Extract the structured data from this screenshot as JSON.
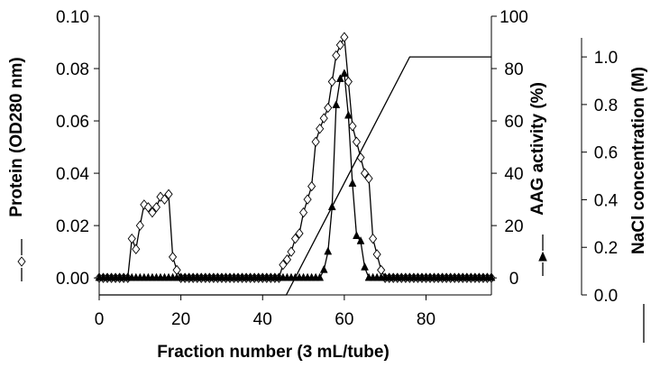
{
  "chart_data": {
    "type": "line",
    "xlabel": "Fraction number (3 mL/tube)",
    "xlim": [
      0,
      96
    ],
    "x_ticks": [
      "0",
      "20",
      "40",
      "60",
      "80"
    ],
    "axes": {
      "protein": {
        "label": "Protein (OD280 nm)",
        "lim": [
          -0.0065,
          0.1
        ],
        "ticks": [
          "0.00",
          "0.02",
          "0.04",
          "0.06",
          "0.08",
          "0.10"
        ],
        "tick_values": [
          0,
          0.02,
          0.04,
          0.06,
          0.08,
          0.1
        ]
      },
      "aag": {
        "label": "AAG activity (%)",
        "lim": [
          -6.5,
          100
        ],
        "ticks": [
          "0",
          "20",
          "40",
          "60",
          "80",
          "100"
        ],
        "tick_values": [
          0,
          20,
          40,
          60,
          80,
          100
        ]
      },
      "nacl": {
        "label": "NaCl concentration (M)",
        "lim": [
          0,
          1.08
        ],
        "ticks": [
          "0.0",
          "0.2",
          "0.4",
          "0.6",
          "0.8",
          "1.0"
        ],
        "tick_values": [
          0,
          0.2,
          0.4,
          0.6,
          0.8,
          1.0
        ]
      }
    },
    "series": [
      {
        "key": "protein",
        "axis": "protein",
        "marker": "diamond-open",
        "x": [
          0,
          1,
          2,
          3,
          4,
          5,
          6,
          7,
          8,
          9,
          10,
          11,
          12,
          13,
          14,
          15,
          16,
          17,
          18,
          19,
          20,
          21,
          22,
          23,
          24,
          25,
          26,
          27,
          28,
          29,
          30,
          31,
          32,
          33,
          34,
          35,
          36,
          37,
          38,
          39,
          40,
          41,
          42,
          43,
          44,
          45,
          46,
          47,
          48,
          49,
          50,
          51,
          52,
          53,
          54,
          55,
          56,
          57,
          58,
          59,
          60,
          61,
          62,
          63,
          64,
          65,
          66,
          67,
          68,
          69,
          70,
          71,
          72,
          73,
          74,
          75,
          76,
          77,
          78,
          79,
          80,
          81,
          82,
          83,
          84,
          85,
          86,
          87,
          88,
          89,
          90,
          91,
          92,
          93,
          94,
          95,
          96
        ],
        "y": [
          0,
          0,
          0,
          0,
          0,
          0,
          0,
          0,
          0.015,
          0.011,
          0.02,
          0.028,
          0.027,
          0.025,
          0.027,
          0.031,
          0.03,
          0.032,
          0.008,
          0.003,
          0,
          0,
          0,
          0,
          0,
          0,
          0,
          0,
          0,
          0,
          0,
          0,
          0,
          0,
          0,
          0,
          0,
          0,
          0,
          0,
          0,
          0,
          0,
          0,
          0,
          0.005,
          0.007,
          0.01,
          0.015,
          0.017,
          0.025,
          0.03,
          0.035,
          0.052,
          0.057,
          0.061,
          0.065,
          0.075,
          0.085,
          0.089,
          0.092,
          0.075,
          0.058,
          0.052,
          0.046,
          0.04,
          0.038,
          0.015,
          0.009,
          0.003,
          0,
          0,
          0,
          0,
          0,
          0,
          0,
          0,
          0,
          0,
          0,
          0,
          0,
          0,
          0,
          0,
          0,
          0,
          0,
          0,
          0,
          0,
          0,
          0,
          0,
          0,
          0
        ]
      },
      {
        "key": "aag",
        "axis": "aag",
        "marker": "triangle-filled",
        "x": [
          0,
          1,
          2,
          3,
          4,
          5,
          6,
          7,
          8,
          9,
          10,
          11,
          12,
          13,
          14,
          15,
          16,
          17,
          18,
          19,
          20,
          21,
          22,
          23,
          24,
          25,
          26,
          27,
          28,
          29,
          30,
          31,
          32,
          33,
          34,
          35,
          36,
          37,
          38,
          39,
          40,
          41,
          42,
          43,
          44,
          45,
          46,
          47,
          48,
          49,
          50,
          51,
          52,
          53,
          54,
          55,
          56,
          57,
          58,
          59,
          60,
          61,
          62,
          63,
          64,
          65,
          66,
          67,
          68,
          69,
          70,
          71,
          72,
          73,
          74,
          75,
          76,
          77,
          78,
          79,
          80,
          81,
          82,
          83,
          84,
          85,
          86,
          87,
          88,
          89,
          90,
          91,
          92,
          93,
          94,
          95,
          96
        ],
        "y": [
          0,
          0,
          0,
          0,
          0,
          0,
          0,
          0,
          0,
          0,
          0,
          0,
          0,
          0,
          0,
          0,
          0,
          0,
          0,
          0,
          0,
          0,
          0,
          0,
          0,
          0,
          0,
          0,
          0,
          0,
          0,
          0,
          0,
          0,
          0,
          0,
          0,
          0,
          0,
          0,
          0,
          0,
          0,
          0,
          0,
          0,
          0,
          0,
          0,
          0,
          0,
          0,
          0,
          0,
          0,
          3,
          10,
          27,
          66,
          76,
          78,
          62,
          36,
          16,
          14,
          4,
          0,
          0,
          0,
          0,
          0,
          0,
          0,
          0,
          0,
          0,
          0,
          0,
          0,
          0,
          0,
          0,
          0,
          0,
          0,
          0,
          0,
          0,
          0,
          0,
          0,
          0,
          0,
          0,
          0,
          0,
          0
        ]
      },
      {
        "key": "nacl",
        "axis": "nacl",
        "marker": "none",
        "x": [
          0,
          45.8,
          76,
          96
        ],
        "y": [
          0,
          0,
          1.0,
          1.0
        ]
      }
    ],
    "grid": false
  }
}
